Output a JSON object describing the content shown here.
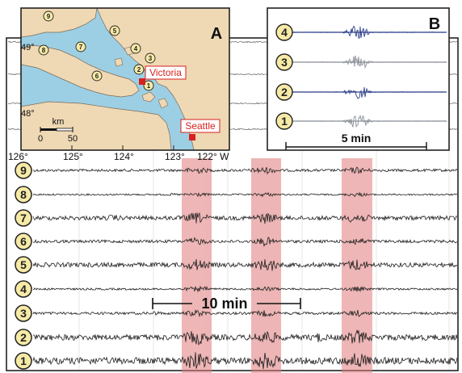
{
  "main": {
    "station_labels": [
      "9",
      "8",
      "7",
      "6",
      "5",
      "4",
      "3",
      "2",
      "1"
    ],
    "scale_label": "10 min",
    "highlight_color": "#e07a7a",
    "trace_color": "#1e1e1e"
  },
  "map_inset": {
    "panel_letter": "A",
    "city_victoria": "Victoria",
    "city_seattle": "Seattle",
    "lat_49": "49°",
    "lat_48": "48°",
    "lon_126": "126°",
    "lon_125": "125°",
    "lon_124": "124°",
    "lon_123": "123°",
    "lon_122": "122° W",
    "scale_unit": "km",
    "scale_0": "0",
    "scale_50": "50",
    "station_markers": [
      "9",
      "8",
      "7",
      "6",
      "5",
      "4",
      "3",
      "2",
      "1"
    ],
    "land_color": "#efd8b4",
    "water_color": "#9ccfe4"
  },
  "inset_b": {
    "panel_letter": "B",
    "station_labels": [
      "4",
      "3",
      "2",
      "1"
    ],
    "scale_label": "5 min",
    "trace_colors": [
      "#2c3f8a",
      "#8b9099",
      "#2c3f8a",
      "#8b9099"
    ]
  }
}
